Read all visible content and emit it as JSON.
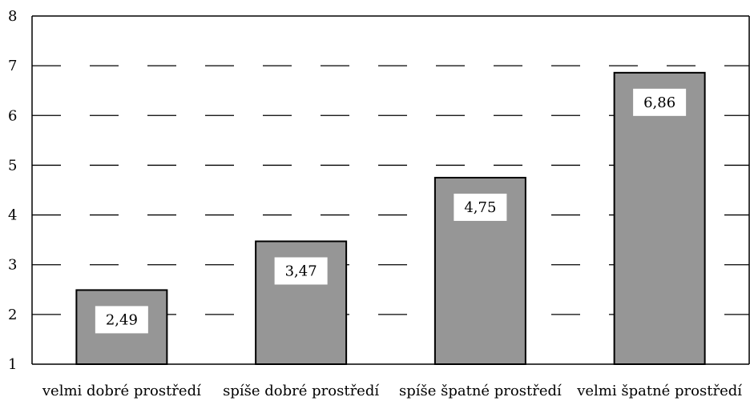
{
  "chart_data": {
    "type": "bar",
    "categories": [
      "velmi dobré prostředí",
      "spíše dobré prostředí",
      "spíše špatné prostředí",
      "velmi špatné prostředí"
    ],
    "values": [
      2.49,
      3.47,
      4.75,
      6.86
    ],
    "data_labels": [
      "2,49",
      "3,47",
      "4,75",
      "6,86"
    ],
    "ylim": [
      1,
      8
    ],
    "yticks": [
      "1",
      "2",
      "3",
      "4",
      "5",
      "6",
      "7",
      "8"
    ],
    "grid": "dashed horizontal",
    "bar_color": "#969696",
    "bar_edge_color": "#000000"
  }
}
